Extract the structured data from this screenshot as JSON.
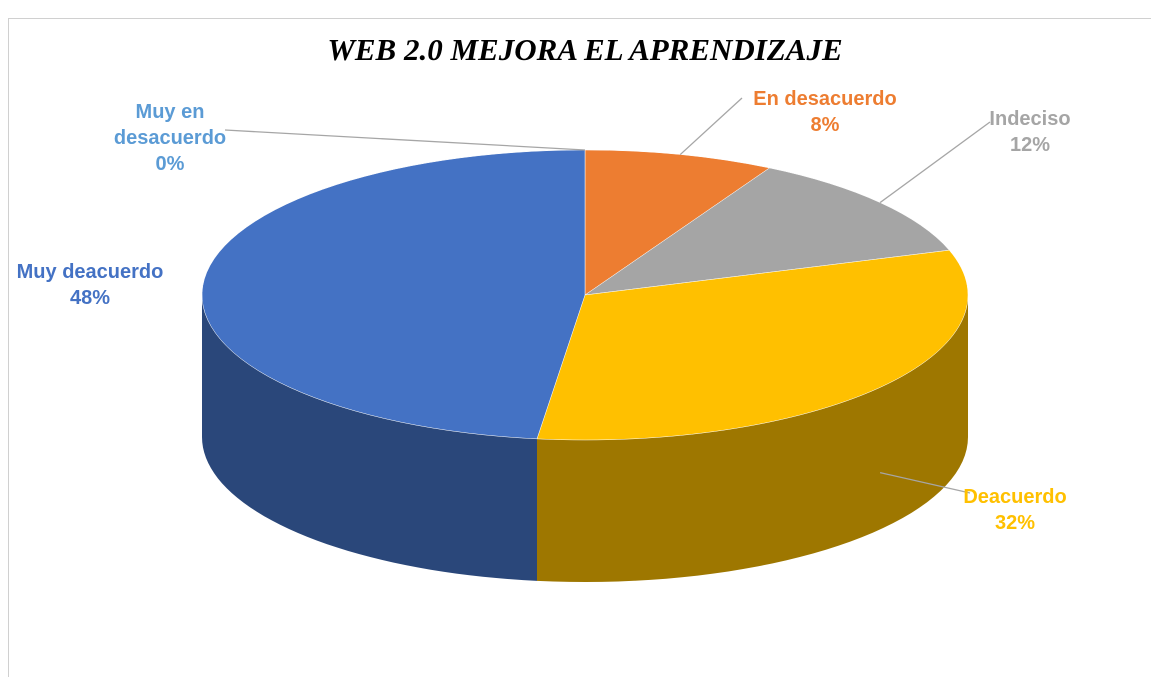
{
  "chart_data": {
    "type": "pie",
    "title": "WEB 2.0 MEJORA  EL APRENDIZAJE",
    "categories": [
      "Muy en desacuerdo",
      "En desacuerdo",
      "Indeciso",
      "Deacuerdo",
      "Muy deacuerdo"
    ],
    "values": [
      0,
      8,
      12,
      32,
      48
    ],
    "value_labels": [
      "0%",
      "8%",
      "12%",
      "32%",
      "48%"
    ],
    "colors": [
      "#5b9bd5",
      "#ed7d31",
      "#a5a5a5",
      "#ffc000",
      "#4472c4"
    ]
  }
}
